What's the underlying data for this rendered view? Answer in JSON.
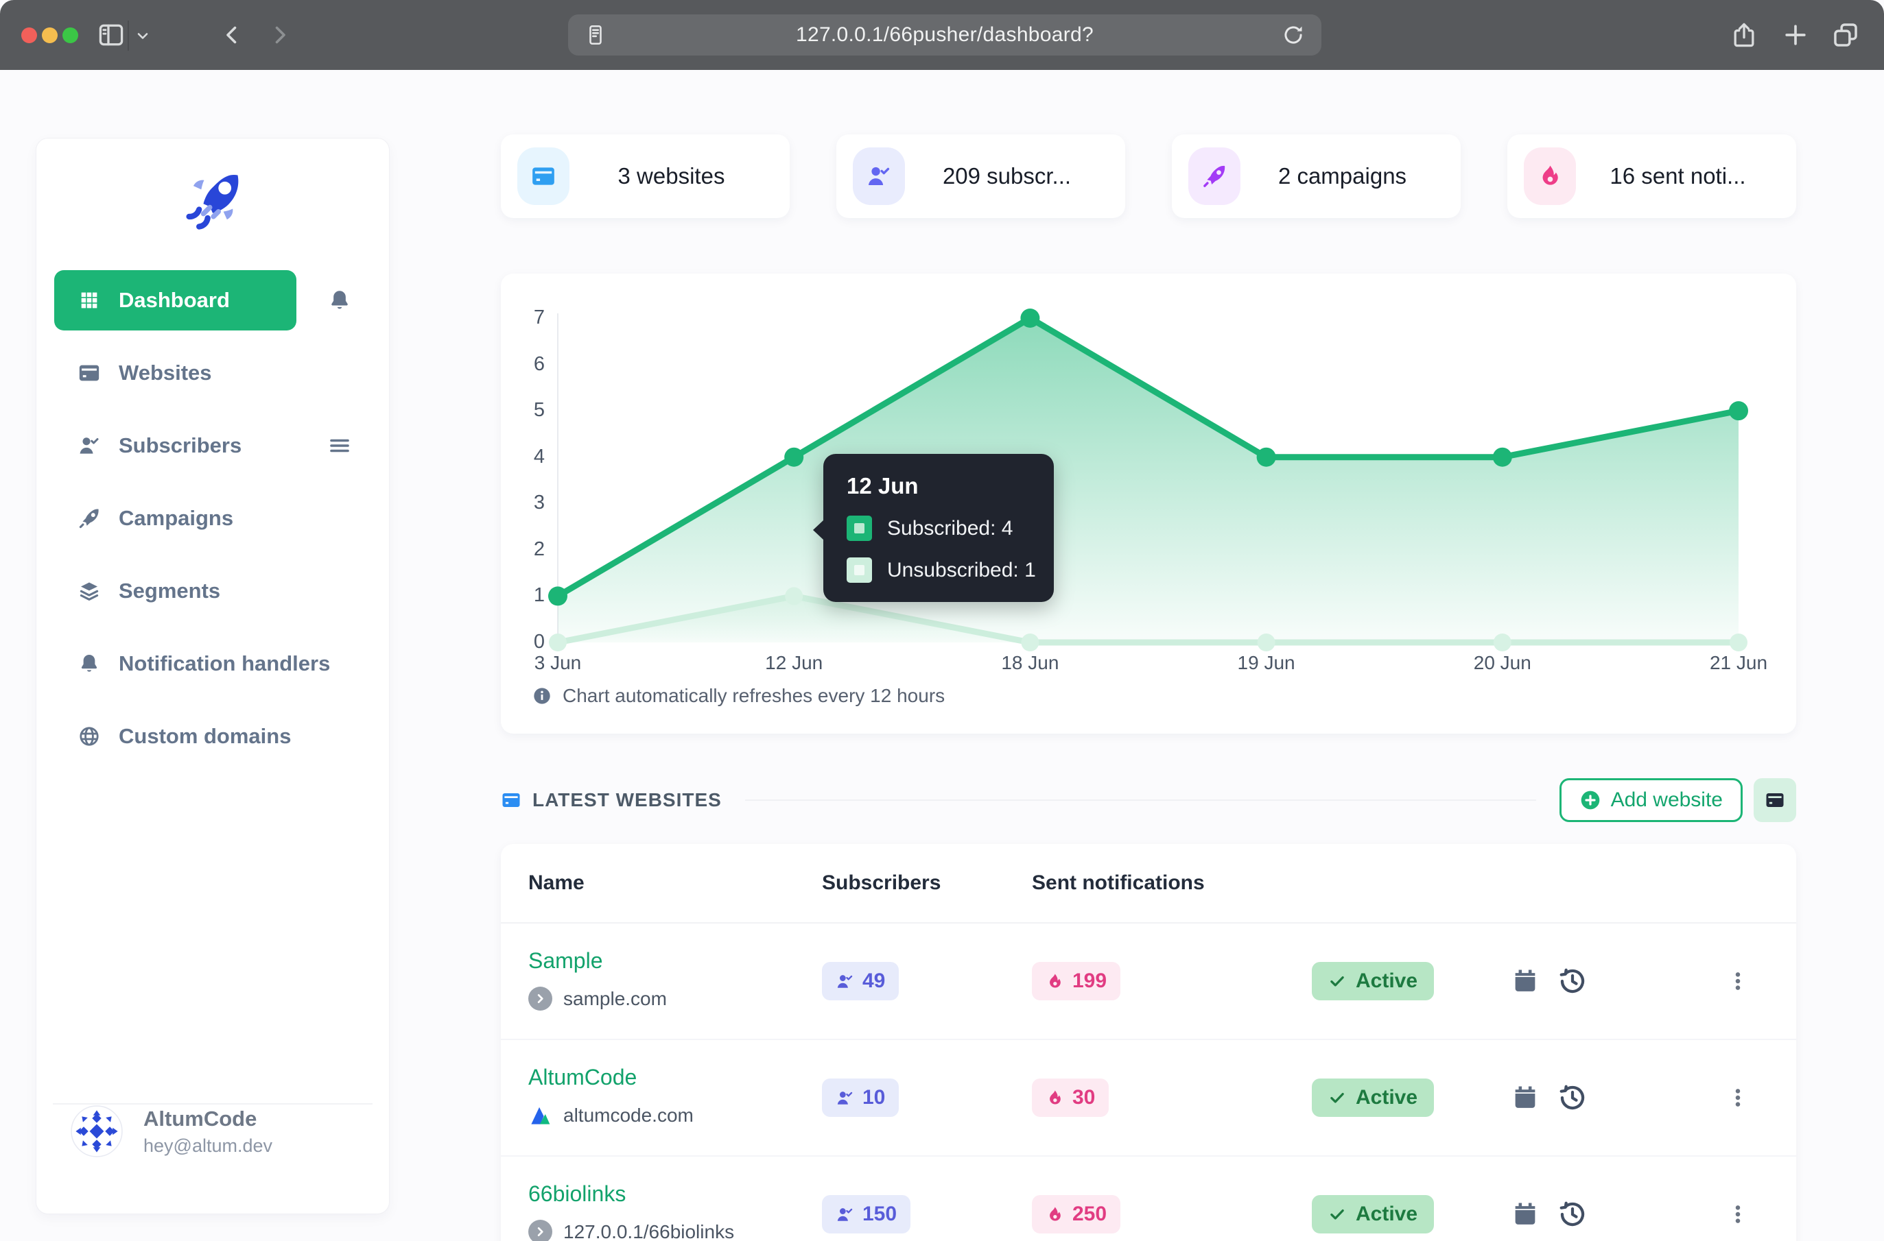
{
  "browser": {
    "url": "127.0.0.1/66pusher/dashboard?"
  },
  "sidebar": {
    "nav": [
      {
        "label": "Dashboard",
        "icon": "grid-icon",
        "active": true,
        "trailing": "bell-icon",
        "trailing_name": "notifications-bell-icon"
      },
      {
        "label": "Websites",
        "icon": "browser-icon",
        "active": false,
        "trailing": null,
        "trailing_name": null
      },
      {
        "label": "Subscribers",
        "icon": "user-check-icon",
        "active": false,
        "trailing": "menu-icon",
        "trailing_name": "subscribers-menu-icon"
      },
      {
        "label": "Campaigns",
        "icon": "rocket-icon",
        "active": false,
        "trailing": null,
        "trailing_name": null
      },
      {
        "label": "Segments",
        "icon": "layers-icon",
        "active": false,
        "trailing": null,
        "trailing_name": null
      },
      {
        "label": "Notification handlers",
        "icon": "bell-icon",
        "active": false,
        "trailing": null,
        "trailing_name": null
      },
      {
        "label": "Custom domains",
        "icon": "globe-icon",
        "active": false,
        "trailing": null,
        "trailing_name": null
      }
    ],
    "user": {
      "name": "AltumCode",
      "email": "hey@altum.dev"
    }
  },
  "stats": [
    {
      "label": "3 websites",
      "icon": "browser-icon",
      "icon_color": "#2f9ff1",
      "icon_bg": "#e7f5fe"
    },
    {
      "label": "209 subscr...",
      "icon": "user-check-icon",
      "icon_color": "#6366f1",
      "icon_bg": "#e9ecfd"
    },
    {
      "label": "2 campaigns",
      "icon": "rocket-icon",
      "icon_color": "#a33bf6",
      "icon_bg": "#f5eafe"
    },
    {
      "label": "16 sent noti...",
      "icon": "fire-icon",
      "icon_color": "#ee3d88",
      "icon_bg": "#fdeaf2"
    }
  ],
  "chart_data": {
    "type": "area",
    "categories": [
      "3 Jun",
      "12 Jun",
      "18 Jun",
      "19 Jun",
      "20 Jun",
      "21 Jun"
    ],
    "series": [
      {
        "name": "Subscribed",
        "values": [
          1,
          4,
          7,
          4,
          4,
          5
        ],
        "color": "#1cb576"
      },
      {
        "name": "Unsubscribed",
        "values": [
          0,
          1,
          0,
          0,
          0,
          0
        ],
        "color": "#cdeedd"
      }
    ],
    "ylim": [
      0,
      7
    ],
    "yticks": [
      0,
      1,
      2,
      3,
      4,
      5,
      6,
      7
    ],
    "grid": false,
    "legend": "tooltip-only",
    "tooltip": {
      "title": "12 Jun",
      "anchor_category": "12 Jun",
      "rows": [
        {
          "label": "Subscribed: 4"
        },
        {
          "label": "Unsubscribed: 1"
        }
      ]
    },
    "note": "Chart automatically refreshes every 12 hours"
  },
  "websites_section": {
    "title": "LATEST WEBSITES",
    "add_button_label": "Add website",
    "table": {
      "headers": [
        "Name",
        "Subscribers",
        "Sent notifications"
      ],
      "rows": [
        {
          "name": "Sample",
          "url": "sample.com",
          "favicon": "chevron",
          "subscribers": "49",
          "notifications": "199",
          "status": "Active"
        },
        {
          "name": "AltumCode",
          "url": "altumcode.com",
          "favicon": "altumcode",
          "subscribers": "10",
          "notifications": "30",
          "status": "Active"
        },
        {
          "name": "66biolinks",
          "url": "127.0.0.1/66biolinks",
          "favicon": "chevron",
          "subscribers": "150",
          "notifications": "250",
          "status": "Active"
        }
      ]
    }
  },
  "colors": {
    "accent_green": "#1cb576",
    "link_green": "#12a26b",
    "badge_green_bg": "#b7e6c5",
    "badge_green_text": "#1d7a40",
    "pill_indigo_bg": "#e7ebfb",
    "pill_indigo_text": "#585cd9",
    "pill_pink_bg": "#fdeaf2",
    "pill_pink_text": "#e13c82",
    "tooltip_bg": "#20242e"
  }
}
